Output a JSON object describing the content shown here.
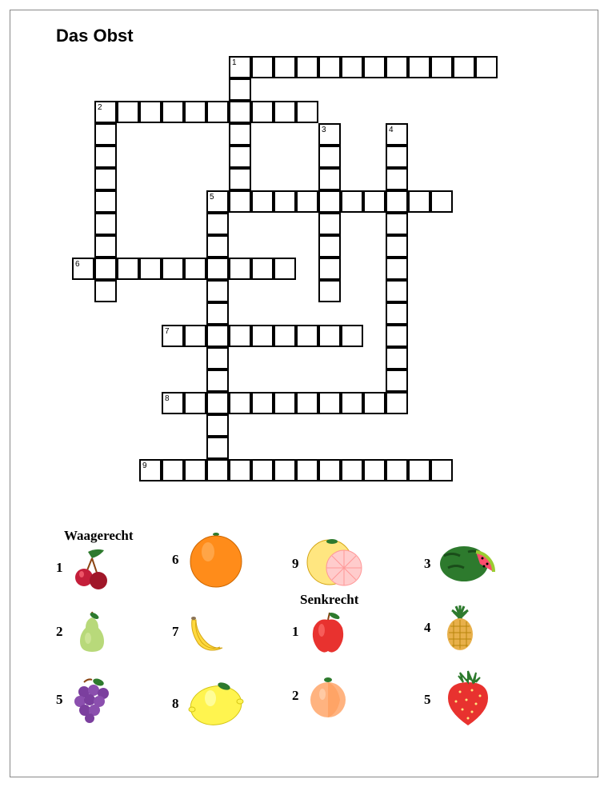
{
  "title": "Das Obst",
  "cell_size": 28,
  "clue_headings": {
    "across": "Waagerecht",
    "down": "Senkrecht"
  },
  "across_clues": [
    {
      "num": "1",
      "fruit": "cherries"
    },
    {
      "num": "2",
      "fruit": "pear"
    },
    {
      "num": "5",
      "fruit": "grapes"
    },
    {
      "num": "6",
      "fruit": "orange"
    },
    {
      "num": "7",
      "fruit": "banana"
    },
    {
      "num": "8",
      "fruit": "lemon"
    },
    {
      "num": "9",
      "fruit": "grapefruit"
    }
  ],
  "down_clues": [
    {
      "num": "1",
      "fruit": "apple"
    },
    {
      "num": "2",
      "fruit": "peach"
    },
    {
      "num": "3",
      "fruit": "watermelon"
    },
    {
      "num": "4",
      "fruit": "pineapple"
    },
    {
      "num": "5",
      "fruit": "strawberry"
    }
  ],
  "grid_cells": [
    {
      "r": 0,
      "c": 7,
      "n": "1"
    },
    {
      "r": 0,
      "c": 8
    },
    {
      "r": 0,
      "c": 9
    },
    {
      "r": 0,
      "c": 10
    },
    {
      "r": 0,
      "c": 11
    },
    {
      "r": 0,
      "c": 12
    },
    {
      "r": 0,
      "c": 13
    },
    {
      "r": 0,
      "c": 14
    },
    {
      "r": 0,
      "c": 15
    },
    {
      "r": 0,
      "c": 16
    },
    {
      "r": 0,
      "c": 17
    },
    {
      "r": 0,
      "c": 18
    },
    {
      "r": 1,
      "c": 7
    },
    {
      "r": 2,
      "c": 1,
      "n": "2"
    },
    {
      "r": 2,
      "c": 2
    },
    {
      "r": 2,
      "c": 3
    },
    {
      "r": 2,
      "c": 4
    },
    {
      "r": 2,
      "c": 5
    },
    {
      "r": 2,
      "c": 6
    },
    {
      "r": 2,
      "c": 7
    },
    {
      "r": 2,
      "c": 8
    },
    {
      "r": 2,
      "c": 9
    },
    {
      "r": 2,
      "c": 10
    },
    {
      "r": 3,
      "c": 1
    },
    {
      "r": 3,
      "c": 7
    },
    {
      "r": 3,
      "c": 11,
      "n": "3"
    },
    {
      "r": 3,
      "c": 14,
      "n": "4"
    },
    {
      "r": 4,
      "c": 1
    },
    {
      "r": 4,
      "c": 7
    },
    {
      "r": 4,
      "c": 11
    },
    {
      "r": 4,
      "c": 14
    },
    {
      "r": 5,
      "c": 1
    },
    {
      "r": 5,
      "c": 7
    },
    {
      "r": 5,
      "c": 11
    },
    {
      "r": 5,
      "c": 14
    },
    {
      "r": 6,
      "c": 1
    },
    {
      "r": 6,
      "c": 6,
      "n": "5"
    },
    {
      "r": 6,
      "c": 7
    },
    {
      "r": 6,
      "c": 8
    },
    {
      "r": 6,
      "c": 9
    },
    {
      "r": 6,
      "c": 10
    },
    {
      "r": 6,
      "c": 11
    },
    {
      "r": 6,
      "c": 12
    },
    {
      "r": 6,
      "c": 13
    },
    {
      "r": 6,
      "c": 14
    },
    {
      "r": 6,
      "c": 15
    },
    {
      "r": 6,
      "c": 16
    },
    {
      "r": 7,
      "c": 1
    },
    {
      "r": 7,
      "c": 6
    },
    {
      "r": 7,
      "c": 11
    },
    {
      "r": 7,
      "c": 14
    },
    {
      "r": 8,
      "c": 1
    },
    {
      "r": 8,
      "c": 6
    },
    {
      "r": 8,
      "c": 11
    },
    {
      "r": 8,
      "c": 14
    },
    {
      "r": 9,
      "c": 0,
      "n": "6"
    },
    {
      "r": 9,
      "c": 1
    },
    {
      "r": 9,
      "c": 2
    },
    {
      "r": 9,
      "c": 3
    },
    {
      "r": 9,
      "c": 4
    },
    {
      "r": 9,
      "c": 5
    },
    {
      "r": 9,
      "c": 6
    },
    {
      "r": 9,
      "c": 7
    },
    {
      "r": 9,
      "c": 8
    },
    {
      "r": 9,
      "c": 9
    },
    {
      "r": 9,
      "c": 11
    },
    {
      "r": 9,
      "c": 14
    },
    {
      "r": 10,
      "c": 1
    },
    {
      "r": 10,
      "c": 6
    },
    {
      "r": 10,
      "c": 11
    },
    {
      "r": 10,
      "c": 14
    },
    {
      "r": 11,
      "c": 6
    },
    {
      "r": 11,
      "c": 14
    },
    {
      "r": 12,
      "c": 4,
      "n": "7"
    },
    {
      "r": 12,
      "c": 5
    },
    {
      "r": 12,
      "c": 6
    },
    {
      "r": 12,
      "c": 7
    },
    {
      "r": 12,
      "c": 8
    },
    {
      "r": 12,
      "c": 9
    },
    {
      "r": 12,
      "c": 10
    },
    {
      "r": 12,
      "c": 11
    },
    {
      "r": 12,
      "c": 12
    },
    {
      "r": 12,
      "c": 14
    },
    {
      "r": 13,
      "c": 6
    },
    {
      "r": 13,
      "c": 14
    },
    {
      "r": 14,
      "c": 6
    },
    {
      "r": 14,
      "c": 14
    },
    {
      "r": 15,
      "c": 4,
      "n": "8"
    },
    {
      "r": 15,
      "c": 5
    },
    {
      "r": 15,
      "c": 6
    },
    {
      "r": 15,
      "c": 7
    },
    {
      "r": 15,
      "c": 8
    },
    {
      "r": 15,
      "c": 9
    },
    {
      "r": 15,
      "c": 10
    },
    {
      "r": 15,
      "c": 11
    },
    {
      "r": 15,
      "c": 12
    },
    {
      "r": 15,
      "c": 13
    },
    {
      "r": 15,
      "c": 14
    },
    {
      "r": 16,
      "c": 6
    },
    {
      "r": 17,
      "c": 6
    },
    {
      "r": 18,
      "c": 3,
      "n": "9"
    },
    {
      "r": 18,
      "c": 4
    },
    {
      "r": 18,
      "c": 5
    },
    {
      "r": 18,
      "c": 6
    },
    {
      "r": 18,
      "c": 7
    },
    {
      "r": 18,
      "c": 8
    },
    {
      "r": 18,
      "c": 9
    },
    {
      "r": 18,
      "c": 10
    },
    {
      "r": 18,
      "c": 11
    },
    {
      "r": 18,
      "c": 12
    },
    {
      "r": 18,
      "c": 13
    },
    {
      "r": 18,
      "c": 14
    },
    {
      "r": 18,
      "c": 15
    },
    {
      "r": 18,
      "c": 16
    }
  ]
}
